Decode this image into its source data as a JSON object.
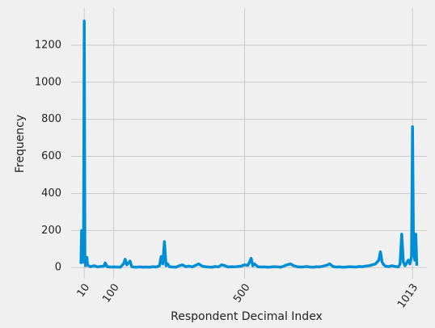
{
  "chart_data": {
    "type": "line",
    "xlabel": "Respondent Decimal Index",
    "ylabel": "Frequency",
    "x": [
      0,
      2,
      4,
      6,
      8,
      10,
      12,
      14,
      16,
      18,
      20,
      25,
      30,
      40,
      50,
      60,
      70,
      74,
      80,
      90,
      100,
      110,
      120,
      130,
      135,
      140,
      150,
      155,
      160,
      170,
      180,
      190,
      200,
      210,
      220,
      230,
      240,
      245,
      250,
      255,
      260,
      265,
      270,
      280,
      290,
      300,
      310,
      320,
      330,
      340,
      350,
      360,
      370,
      380,
      390,
      400,
      410,
      420,
      430,
      440,
      450,
      460,
      470,
      480,
      490,
      500,
      510,
      515,
      520,
      525,
      530,
      540,
      550,
      560,
      570,
      580,
      590,
      600,
      610,
      620,
      630,
      640,
      650,
      660,
      670,
      680,
      690,
      700,
      710,
      720,
      730,
      740,
      750,
      760,
      770,
      780,
      790,
      800,
      810,
      820,
      830,
      840,
      850,
      860,
      870,
      880,
      890,
      900,
      910,
      915,
      920,
      925,
      930,
      940,
      950,
      960,
      970,
      975,
      980,
      985,
      990,
      1000,
      1005,
      1010,
      1013,
      1016,
      1020,
      1023,
      1026
    ],
    "series": [
      {
        "color": "#008fd5",
        "values": [
          20,
          200,
          60,
          30,
          150,
          1330,
          40,
          10,
          50,
          55,
          15,
          8,
          5,
          10,
          4,
          6,
          8,
          25,
          5,
          3,
          4,
          3,
          2,
          20,
          45,
          15,
          35,
          5,
          3,
          2,
          4,
          2,
          3,
          2,
          5,
          3,
          10,
          60,
          20,
          140,
          10,
          20,
          5,
          3,
          2,
          10,
          15,
          5,
          8,
          4,
          12,
          20,
          8,
          5,
          3,
          2,
          6,
          4,
          15,
          10,
          3,
          5,
          4,
          6,
          8,
          15,
          12,
          30,
          50,
          10,
          20,
          5,
          3,
          4,
          2,
          3,
          5,
          4,
          2,
          8,
          15,
          20,
          10,
          5,
          3,
          4,
          6,
          3,
          2,
          5,
          4,
          8,
          12,
          20,
          6,
          3,
          4,
          2,
          3,
          5,
          4,
          3,
          6,
          5,
          8,
          10,
          15,
          20,
          40,
          85,
          30,
          15,
          8,
          5,
          10,
          6,
          4,
          20,
          180,
          30,
          10,
          40,
          20,
          60,
          760,
          100,
          40,
          180,
          10
        ]
      }
    ],
    "xlim": [
      -30,
      1057
    ],
    "ylim": [
      -60,
      1400
    ],
    "xticks": [
      10,
      100,
      500,
      1013
    ],
    "yticks": [
      0,
      200,
      400,
      600,
      800,
      1000,
      1200
    ],
    "grid": true
  }
}
